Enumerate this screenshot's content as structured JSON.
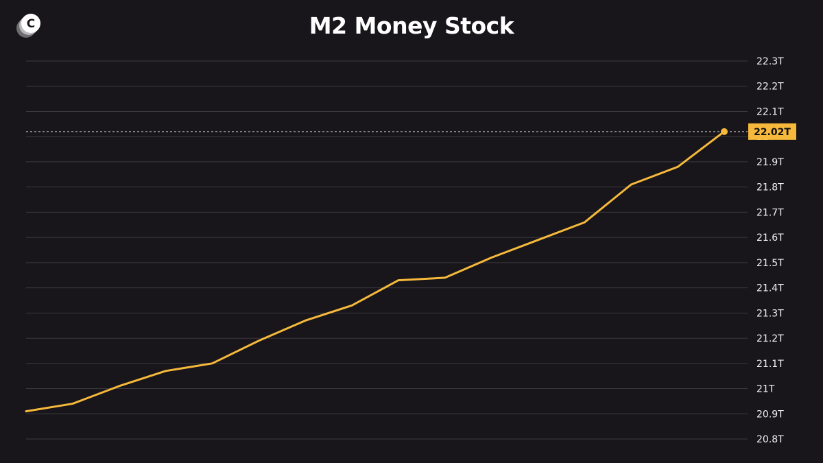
{
  "chart_data": {
    "type": "line",
    "title": "M2 Money Stock",
    "xlabel": "",
    "ylabel": "",
    "ylim": [
      20.8,
      22.3
    ],
    "yticks": [
      22.3,
      22.2,
      22.1,
      22.0,
      21.9,
      21.8,
      21.7,
      21.6,
      21.5,
      21.4,
      21.3,
      21.2,
      21.1,
      21.0,
      20.9,
      20.8
    ],
    "ytick_labels": [
      "22.3T",
      "22.2T",
      "22.1T",
      "22T",
      "21.9T",
      "21.8T",
      "21.7T",
      "21.6T",
      "21.5T",
      "21.4T",
      "21.3T",
      "21.2T",
      "21.1T",
      "21T",
      "20.9T",
      "20.8T"
    ],
    "grid": true,
    "x": [
      0,
      1,
      2,
      3,
      4,
      5,
      6,
      7,
      8,
      9,
      10,
      11,
      12,
      13,
      14,
      15
    ],
    "series": [
      {
        "values": [
          20.91,
          20.94,
          21.01,
          21.07,
          21.1,
          21.19,
          21.27,
          21.33,
          21.43,
          21.44,
          21.52,
          21.59,
          21.66,
          21.81,
          21.88,
          22.02
        ],
        "color": "#f6b93b"
      }
    ],
    "last_value_label": "22.02T",
    "accent_color": "#f6b93b"
  }
}
